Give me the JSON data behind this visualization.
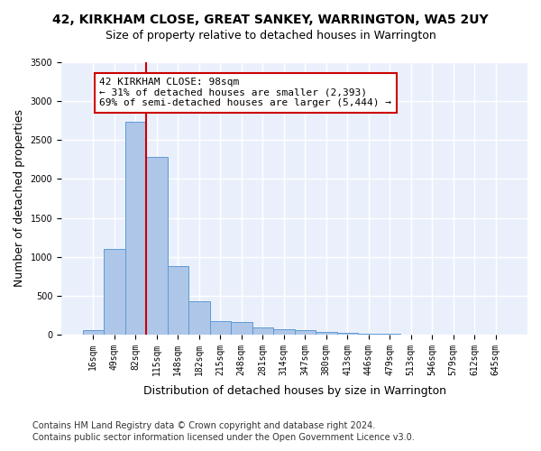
{
  "title": "42, KIRKHAM CLOSE, GREAT SANKEY, WARRINGTON, WA5 2UY",
  "subtitle": "Size of property relative to detached houses in Warrington",
  "xlabel": "Distribution of detached houses by size in Warrington",
  "ylabel": "Number of detached properties",
  "bar_values": [
    55,
    1100,
    2730,
    2280,
    880,
    425,
    170,
    165,
    90,
    65,
    60,
    35,
    25,
    10,
    5,
    3,
    2,
    2,
    1,
    1
  ],
  "bar_labels": [
    "16sqm",
    "49sqm",
    "82sqm",
    "115sqm",
    "148sqm",
    "182sqm",
    "215sqm",
    "248sqm",
    "281sqm",
    "314sqm",
    "347sqm",
    "380sqm",
    "413sqm",
    "446sqm",
    "479sqm",
    "513sqm",
    "546sqm",
    "579sqm",
    "612sqm",
    "645sqm"
  ],
  "bar_color": "#aec6e8",
  "bar_edgecolor": "#5b9bd5",
  "vline_x_pos": 2.5,
  "vline_color": "#cc0000",
  "annotation_text": "42 KIRKHAM CLOSE: 98sqm\n← 31% of detached houses are smaller (2,393)\n69% of semi-detached houses are larger (5,444) →",
  "annotation_box_edgecolor": "#cc0000",
  "annotation_box_facecolor": "white",
  "ylim": [
    0,
    3500
  ],
  "yticks": [
    0,
    500,
    1000,
    1500,
    2000,
    2500,
    3000,
    3500
  ],
  "background_color": "#eaf0fb",
  "grid_color": "#ffffff",
  "footer_line1": "Contains HM Land Registry data © Crown copyright and database right 2024.",
  "footer_line2": "Contains public sector information licensed under the Open Government Licence v3.0.",
  "title_fontsize": 10,
  "subtitle_fontsize": 9,
  "xlabel_fontsize": 9,
  "ylabel_fontsize": 9,
  "tick_fontsize": 7,
  "annotation_fontsize": 8,
  "footer_fontsize": 7
}
